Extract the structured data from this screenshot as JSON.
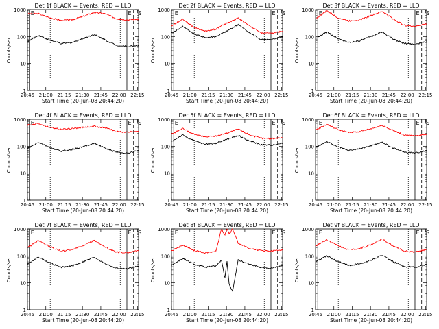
{
  "chart_data": [
    {
      "type": "line",
      "title": "Det 1f BLACK = Events, RED = LLD",
      "xlabel": "Start Time (20-Jun-08 20:44:20)",
      "ylabel": "Counts/sec",
      "ylog": true,
      "ylim": [
        1,
        1000
      ],
      "yticks": [
        "1",
        "10",
        "100",
        "1000"
      ],
      "xticks": [
        "20:45",
        "21:00",
        "21:15",
        "21:30",
        "21:45",
        "22:00",
        "22:15"
      ],
      "markers": [
        {
          "label": "E",
          "style": "solid"
        },
        {
          "label": "E",
          "style": "solid"
        },
        {
          "label": "S",
          "style": "dashed"
        }
      ],
      "series": [
        {
          "color": "#ff0000",
          "x": [
            0,
            10,
            20,
            30,
            40,
            50,
            60,
            70,
            80,
            90,
            100
          ],
          "y": [
            700,
            700,
            500,
            400,
            420,
            560,
            780,
            700,
            460,
            420,
            440
          ]
        },
        {
          "color": "#000000",
          "x": [
            0,
            10,
            20,
            30,
            40,
            50,
            60,
            70,
            80,
            90,
            100
          ],
          "y": [
            65,
            110,
            75,
            55,
            60,
            85,
            120,
            75,
            47,
            43,
            47
          ]
        }
      ]
    },
    {
      "type": "line",
      "title": "Det 2f BLACK = Events, RED = LLD",
      "xlabel": "Start Time (20-Jun-08 20:44:20)",
      "ylabel": "Counts/sec",
      "ylog": true,
      "ylim": [
        1,
        1000
      ],
      "yticks": [
        "1",
        "10",
        "100",
        "1000"
      ],
      "xticks": [
        "20:45",
        "21:00",
        "21:15",
        "21:30",
        "21:45",
        "22:00",
        "22:15"
      ],
      "markers": [
        {
          "label": "E",
          "style": "solid"
        },
        {
          "label": "E",
          "style": "solid"
        },
        {
          "label": "S",
          "style": "dashed"
        }
      ],
      "series": [
        {
          "color": "#ff0000",
          "x": [
            0,
            10,
            20,
            30,
            40,
            50,
            60,
            70,
            80,
            90,
            100
          ],
          "y": [
            250,
            450,
            220,
            160,
            190,
            320,
            480,
            260,
            140,
            130,
            160
          ]
        },
        {
          "color": "#000000",
          "x": [
            0,
            10,
            20,
            30,
            40,
            50,
            60,
            70,
            80,
            90,
            100
          ],
          "y": [
            130,
            240,
            130,
            90,
            100,
            160,
            280,
            140,
            80,
            75,
            100
          ]
        }
      ]
    },
    {
      "type": "line",
      "title": "Det 3f BLACK = Events, RED = LLD",
      "xlabel": "Start Time (20-Jun-08 20:44:20)",
      "ylabel": "Counts/sec",
      "ylog": true,
      "ylim": [
        1,
        1000
      ],
      "yticks": [
        "1",
        "10",
        "100",
        "1000"
      ],
      "xticks": [
        "20:45",
        "21:00",
        "21:15",
        "21:30",
        "21:45",
        "22:00",
        "22:15"
      ],
      "markers": [
        {
          "label": "E",
          "style": "solid"
        },
        {
          "label": "E",
          "style": "solid"
        },
        {
          "label": "S",
          "style": "dashed"
        }
      ],
      "series": [
        {
          "color": "#ff0000",
          "x": [
            0,
            10,
            20,
            30,
            40,
            50,
            60,
            70,
            80,
            90,
            100
          ],
          "y": [
            450,
            900,
            500,
            380,
            420,
            600,
            850,
            450,
            260,
            240,
            300
          ]
        },
        {
          "color": "#000000",
          "x": [
            0,
            10,
            20,
            30,
            40,
            50,
            60,
            70,
            80,
            90,
            100
          ],
          "y": [
            80,
            150,
            85,
            60,
            70,
            100,
            150,
            80,
            55,
            52,
            65
          ]
        }
      ]
    },
    {
      "type": "line",
      "title": "Det 4f BLACK = Events, RED = LLD",
      "xlabel": "Start Time (20-Jun-08 20:44:20)",
      "ylabel": "Counts/sec",
      "ylog": true,
      "ylim": [
        1,
        1000
      ],
      "yticks": [
        "1",
        "10",
        "100",
        "1000"
      ],
      "xticks": [
        "20:45",
        "21:00",
        "21:15",
        "21:30",
        "21:45",
        "22:00",
        "22:15"
      ],
      "markers": [
        {
          "label": "E",
          "style": "solid"
        },
        {
          "label": "E",
          "style": "solid"
        },
        {
          "label": "S",
          "style": "dashed"
        }
      ],
      "series": [
        {
          "color": "#ff0000",
          "x": [
            0,
            10,
            20,
            30,
            40,
            50,
            60,
            70,
            80,
            90,
            100
          ],
          "y": [
            600,
            700,
            500,
            420,
            450,
            500,
            550,
            480,
            350,
            330,
            370
          ]
        },
        {
          "color": "#000000",
          "x": [
            0,
            10,
            20,
            30,
            40,
            50,
            60,
            70,
            80,
            90,
            100
          ],
          "y": [
            80,
            140,
            90,
            65,
            75,
            95,
            130,
            85,
            60,
            55,
            70
          ]
        }
      ]
    },
    {
      "type": "line",
      "title": "Det 5f BLACK = Events, RED = LLD",
      "xlabel": "Start Time (20-Jun-08 20:44:20)",
      "ylabel": "Counts/sec",
      "ylog": true,
      "ylim": [
        1,
        1000
      ],
      "yticks": [
        "1",
        "10",
        "100",
        "1000"
      ],
      "xticks": [
        "20:45",
        "21:00",
        "21:15",
        "21:30",
        "21:45",
        "22:00",
        "22:15"
      ],
      "markers": [
        {
          "label": "E",
          "style": "solid"
        },
        {
          "label": "E",
          "style": "solid"
        },
        {
          "label": "S",
          "style": "dashed"
        }
      ],
      "series": [
        {
          "color": "#ff0000",
          "x": [
            0,
            10,
            20,
            30,
            40,
            50,
            60,
            70,
            80,
            90,
            100
          ],
          "y": [
            280,
            450,
            280,
            220,
            240,
            310,
            430,
            270,
            200,
            190,
            210
          ]
        },
        {
          "color": "#000000",
          "x": [
            0,
            10,
            20,
            30,
            40,
            50,
            60,
            70,
            80,
            90,
            100
          ],
          "y": [
            150,
            260,
            160,
            120,
            130,
            180,
            250,
            160,
            115,
            110,
            130
          ]
        }
      ]
    },
    {
      "type": "line",
      "title": "Det 6f BLACK = Events, RED = LLD",
      "xlabel": "Start Time (20-Jun-08 20:44:20)",
      "ylabel": "Counts/sec",
      "ylog": true,
      "ylim": [
        1,
        1000
      ],
      "yticks": [
        "1",
        "10",
        "100",
        "1000"
      ],
      "xticks": [
        "20:45",
        "21:00",
        "21:15",
        "21:30",
        "21:45",
        "22:00",
        "22:15"
      ],
      "markers": [
        {
          "label": "E",
          "style": "solid"
        },
        {
          "label": "E",
          "style": "solid"
        },
        {
          "label": "S",
          "style": "dashed"
        }
      ],
      "series": [
        {
          "color": "#ff0000",
          "x": [
            0,
            10,
            20,
            30,
            40,
            50,
            60,
            70,
            80,
            90,
            100
          ],
          "y": [
            400,
            650,
            420,
            320,
            350,
            450,
            600,
            380,
            260,
            240,
            280
          ]
        },
        {
          "color": "#000000",
          "x": [
            0,
            10,
            20,
            30,
            40,
            50,
            60,
            70,
            80,
            90,
            100
          ],
          "y": [
            90,
            150,
            95,
            70,
            80,
            105,
            140,
            85,
            60,
            56,
            70
          ]
        }
      ]
    },
    {
      "type": "line",
      "title": "Det 7f BLACK = Events, RED = LLD",
      "xlabel": "Start Time (20-Jun-08 20:44:20)",
      "ylabel": "Counts/sec",
      "ylog": true,
      "ylim": [
        1,
        1000
      ],
      "yticks": [
        "1",
        "10",
        "100",
        "1000"
      ],
      "xticks": [
        "20:45",
        "21:00",
        "21:15",
        "21:30",
        "21:45",
        "22:00",
        "22:15"
      ],
      "markers": [
        {
          "label": "E",
          "style": "solid"
        },
        {
          "label": "E",
          "style": "solid"
        },
        {
          "label": "S",
          "style": "dashed"
        }
      ],
      "series": [
        {
          "color": "#ff0000",
          "x": [
            0,
            10,
            20,
            30,
            40,
            50,
            60,
            70,
            80,
            90,
            100
          ],
          "y": [
            200,
            380,
            220,
            150,
            170,
            240,
            380,
            210,
            140,
            130,
            160
          ]
        },
        {
          "color": "#000000",
          "x": [
            0,
            10,
            20,
            30,
            40,
            50,
            60,
            70,
            80,
            90,
            100
          ],
          "y": [
            50,
            90,
            55,
            38,
            42,
            60,
            90,
            52,
            35,
            33,
            42
          ]
        }
      ]
    },
    {
      "type": "line",
      "title": "Det 8f BLACK = Events, RED = LLD",
      "xlabel": "Start Time (20-Jun-08 20:44:20)",
      "ylabel": "Counts/sec",
      "ylog": true,
      "ylim": [
        1,
        1000
      ],
      "yticks": [
        "1",
        "10",
        "100",
        "1000"
      ],
      "xticks": [
        "20:45",
        "21:00",
        "21:15",
        "21:30",
        "21:45",
        "22:00",
        "22:15"
      ],
      "markers": [
        {
          "label": "E",
          "style": "solid"
        },
        {
          "label": "E",
          "style": "solid"
        },
        {
          "label": "S",
          "style": "dashed"
        }
      ],
      "series": [
        {
          "color": "#ff0000",
          "x": [
            0,
            10,
            20,
            30,
            40,
            45,
            48,
            50,
            52,
            55,
            60,
            70,
            80,
            90,
            100
          ],
          "y": [
            150,
            250,
            160,
            130,
            150,
            1000,
            600,
            1000,
            650,
            1000,
            300,
            190,
            160,
            150,
            170
          ]
        },
        {
          "color": "#000000",
          "x": [
            0,
            10,
            20,
            30,
            40,
            45,
            48,
            50,
            52,
            55,
            60,
            70,
            80,
            90,
            100
          ],
          "y": [
            45,
            80,
            50,
            38,
            42,
            70,
            15,
            60,
            8,
            5,
            70,
            50,
            38,
            35,
            45
          ]
        }
      ]
    },
    {
      "type": "line",
      "title": "Det 9f BLACK = Events, RED = LLD",
      "xlabel": "Start Time (20-Jun-08 20:44:20)",
      "ylabel": "Counts/sec",
      "ylog": true,
      "ylim": [
        1,
        1000
      ],
      "yticks": [
        "1",
        "10",
        "100",
        "1000"
      ],
      "xticks": [
        "20:45",
        "21:00",
        "21:15",
        "21:30",
        "21:45",
        "22:00",
        "22:15"
      ],
      "markers": [
        {
          "label": "E",
          "style": "solid"
        },
        {
          "label": "E",
          "style": "solid"
        },
        {
          "label": "S",
          "style": "dashed"
        }
      ],
      "series": [
        {
          "color": "#ff0000",
          "x": [
            0,
            10,
            20,
            30,
            40,
            50,
            60,
            70,
            80,
            90,
            100
          ],
          "y": [
            230,
            400,
            240,
            170,
            190,
            260,
            420,
            230,
            150,
            140,
            170
          ]
        },
        {
          "color": "#000000",
          "x": [
            0,
            10,
            20,
            30,
            40,
            50,
            60,
            70,
            80,
            90,
            100
          ],
          "y": [
            60,
            100,
            62,
            45,
            50,
            70,
            105,
            60,
            40,
            38,
            48
          ]
        }
      ]
    }
  ]
}
